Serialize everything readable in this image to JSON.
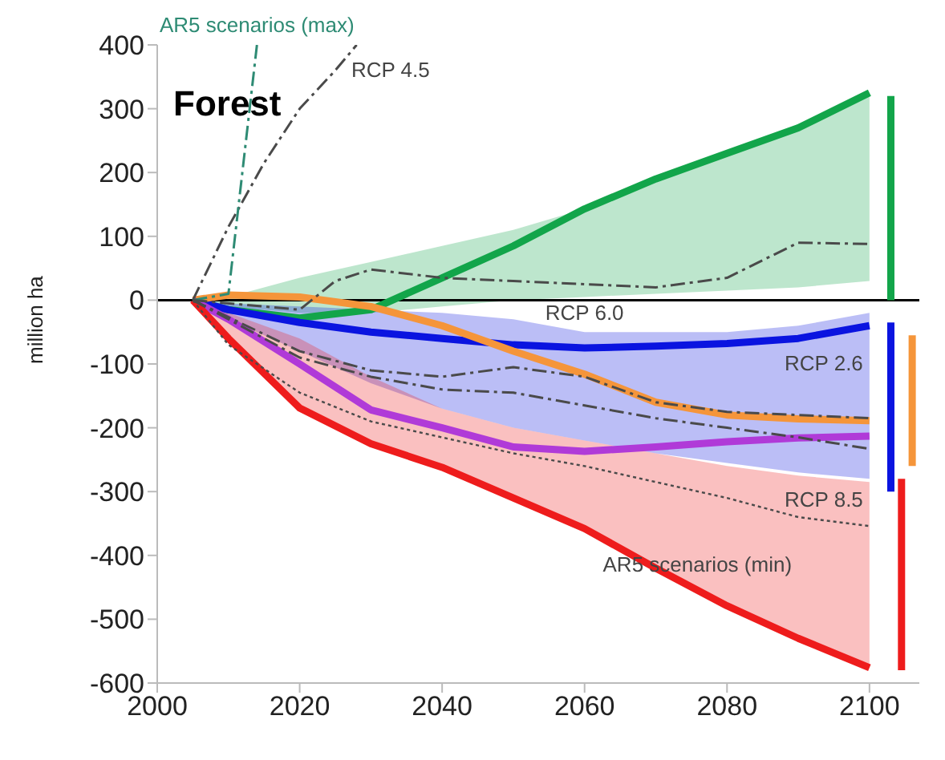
{
  "chart_data": {
    "type": "line",
    "title": "Forest",
    "ylabel": "million ha",
    "x": [
      2005,
      2010,
      2020,
      2030,
      2040,
      2050,
      2060,
      2070,
      2080,
      2090,
      2100
    ],
    "xlim": [
      2000,
      2107
    ],
    "xticks": [
      2000,
      2020,
      2040,
      2060,
      2080,
      2100
    ],
    "ylim": [
      -600,
      400
    ],
    "yticks": [
      -600,
      -500,
      -400,
      -300,
      -200,
      -100,
      0,
      100,
      200,
      300,
      400
    ],
    "marker": "none",
    "ref_lines": [
      {
        "axis": "y",
        "value": 0,
        "color": "#000000"
      }
    ],
    "series": [
      {
        "color": "#12a54a",
        "values": [
          0,
          -15,
          -28,
          -15,
          35,
          85,
          143,
          190,
          230,
          270,
          325
        ],
        "lower": [
          0,
          -10,
          -20,
          -20,
          -10,
          0,
          5,
          10,
          15,
          20,
          30
        ],
        "upper": [
          0,
          5,
          35,
          60,
          85,
          110,
          143,
          190,
          230,
          270,
          325
        ]
      },
      {
        "color": "#0a14e0",
        "values": [
          0,
          -15,
          -35,
          -50,
          -60,
          -70,
          -75,
          -72,
          -68,
          -60,
          -40
        ],
        "lower": [
          0,
          -30,
          -80,
          -130,
          -170,
          -200,
          -220,
          -240,
          -255,
          -270,
          -280
        ],
        "upper": [
          0,
          -5,
          -10,
          -15,
          -20,
          -30,
          -50,
          -50,
          -50,
          -40,
          -20
        ]
      },
      {
        "color": "#f5953a",
        "values": [
          0,
          8,
          5,
          -10,
          -40,
          -80,
          -116,
          -160,
          -180,
          -186,
          -189
        ]
      },
      {
        "color": "#b03ad8",
        "values": [
          0,
          -30,
          -100,
          -172,
          -200,
          -230,
          -237,
          -230,
          -222,
          -216,
          -213
        ]
      },
      {
        "color": "#ee1c1c",
        "values": [
          0,
          -60,
          -169,
          -225,
          -262,
          -310,
          -358,
          -420,
          -479,
          -530,
          -576
        ],
        "lower": [
          0,
          -60,
          -169,
          -225,
          -262,
          -310,
          -358,
          -420,
          -479,
          -530,
          -576
        ],
        "upper": [
          0,
          -20,
          -60,
          -120,
          -170,
          -200,
          -220,
          -240,
          -260,
          -275,
          -285
        ]
      },
      {
        "color": "#4a4a4a",
        "line_style": "dashed",
        "x": [
          2005,
          2010,
          2015,
          2020,
          2025,
          2028
        ],
        "values": [
          0,
          115,
          215,
          300,
          360,
          400
        ]
      },
      {
        "color": "#2e8b74",
        "line_style": "dashed",
        "x": [
          2005,
          2010,
          2014
        ],
        "values": [
          0,
          10,
          400
        ]
      },
      {
        "color": "#4a4a4a",
        "line_style": "dashed",
        "x": [
          2005,
          2020,
          2025,
          2030,
          2040,
          2050,
          2060,
          2070,
          2080,
          2090,
          2100
        ],
        "values": [
          0,
          -15,
          30,
          48,
          35,
          30,
          25,
          20,
          35,
          90,
          88
        ]
      },
      {
        "color": "#4a4a4a",
        "line_style": "dashed",
        "x": [
          2005,
          2020,
          2030,
          2040,
          2050,
          2060,
          2070,
          2080,
          2090,
          2100
        ],
        "values": [
          0,
          -80,
          -110,
          -120,
          -105,
          -120,
          -160,
          -175,
          -180,
          -185
        ]
      },
      {
        "color": "#4a4a4a",
        "line_style": "dashed",
        "x": [
          2005,
          2020,
          2030,
          2040,
          2050,
          2060,
          2070,
          2080,
          2090,
          2100
        ],
        "values": [
          0,
          -90,
          -120,
          -140,
          -145,
          -165,
          -185,
          -200,
          -215,
          -233
        ]
      },
      {
        "color": "#4a4a4a",
        "line_style": "dotted",
        "values": [
          0,
          -70,
          -145,
          -190,
          -215,
          -240,
          -260,
          -285,
          -310,
          -340,
          -354
        ]
      },
      {
        "color": "#12a54a",
        "x": [
          2103,
          2103
        ],
        "values": [
          0,
          320
        ]
      },
      {
        "color": "#0a14e0",
        "x": [
          2103,
          2103
        ],
        "values": [
          -35,
          -300
        ]
      },
      {
        "color": "#ee1c1c",
        "x": [
          2104.5,
          2104.5
        ],
        "values": [
          -280,
          -580
        ]
      },
      {
        "color": "#f5953a",
        "x": [
          2106,
          2106
        ],
        "values": [
          -55,
          -260
        ]
      }
    ],
    "annotations": [
      {
        "text": "AR5 scenarios (max)",
        "x": 2014,
        "y": 400
      },
      {
        "text": "RCP 4.5",
        "x": 2025,
        "y": 360
      },
      {
        "text": "RCP 6.0",
        "x": 2060,
        "y": 25
      },
      {
        "text": "RCP 2.6",
        "x": 2100,
        "y": -185
      },
      {
        "text": "RCP 8.5",
        "x": 2100,
        "y": -233
      },
      {
        "text": "AR5 scenarios (min)",
        "x": 2090,
        "y": -340
      }
    ]
  }
}
